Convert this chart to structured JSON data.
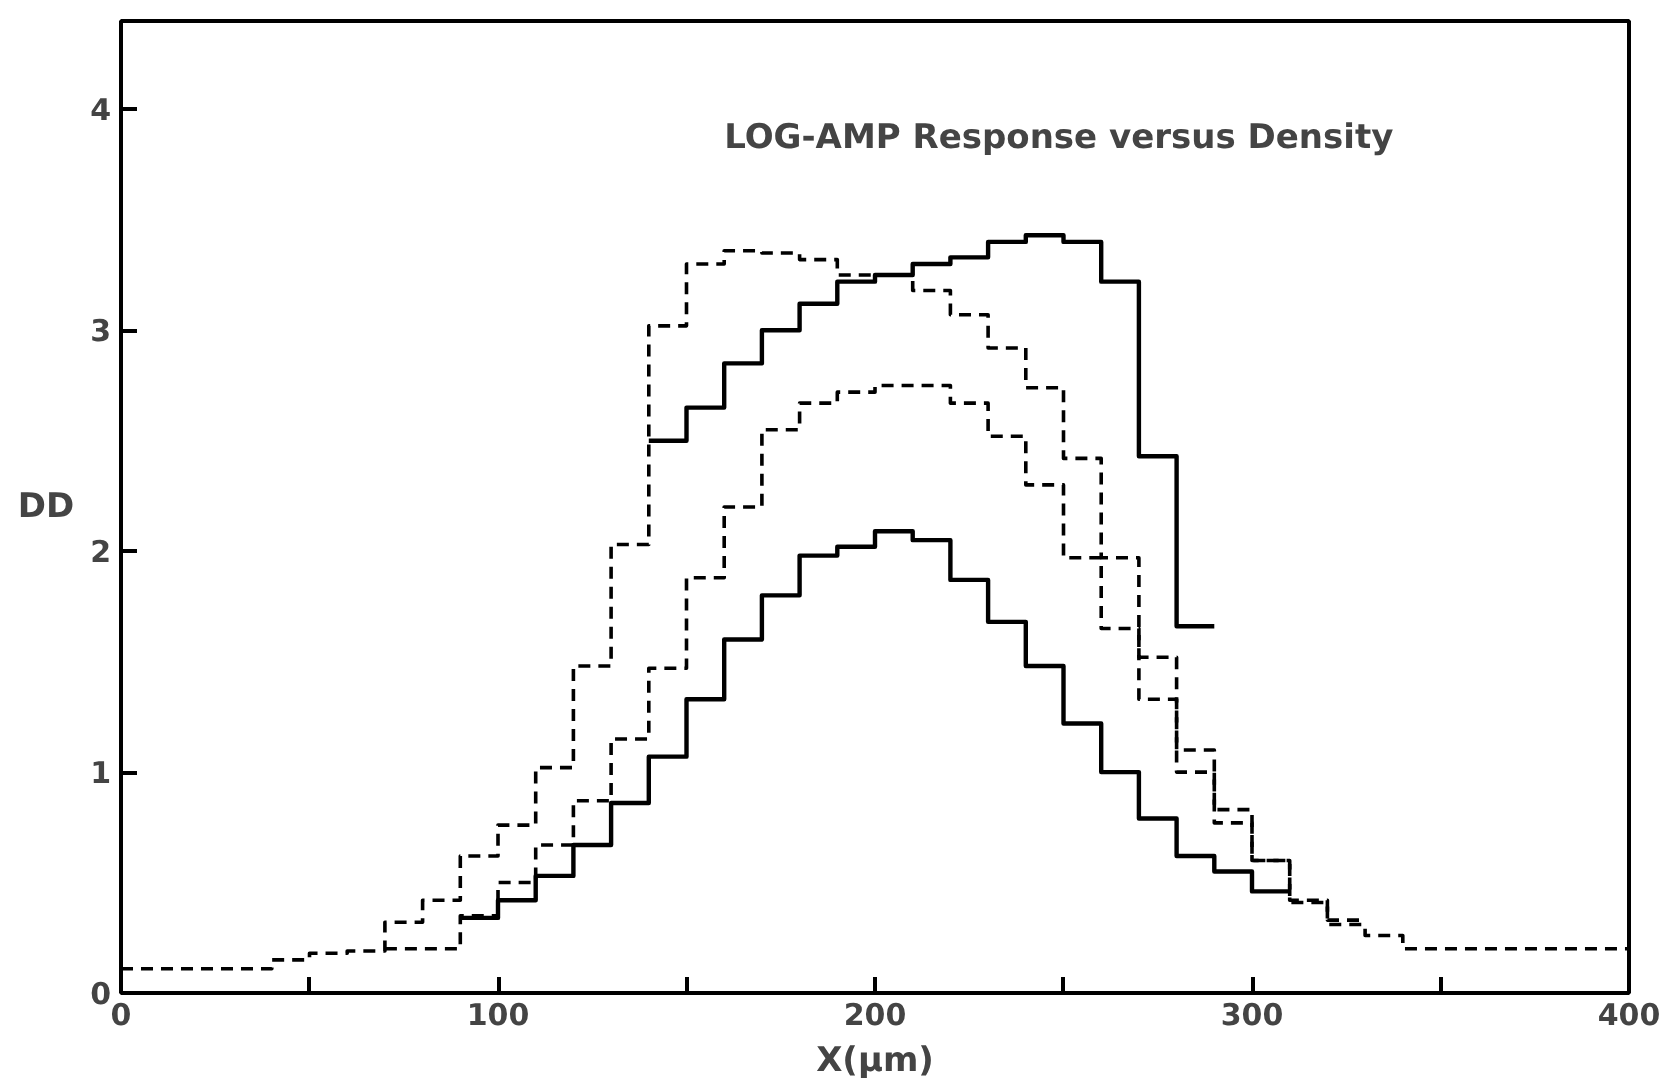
{
  "chart_data": {
    "type": "step",
    "title": "LOG-AMP Response versus Density",
    "xlabel": "X(μm)",
    "ylabel": "DD",
    "xlim": [
      0,
      400
    ],
    "ylim": [
      0,
      4.4
    ],
    "xticks": [
      0,
      {
        "value": 50,
        "label": null
      },
      100,
      {
        "value": 150,
        "label": null
      },
      200,
      {
        "value": 250,
        "label": null
      },
      300,
      {
        "value": 350,
        "label": null
      },
      400
    ],
    "yticks": [
      0,
      1,
      2,
      3,
      4
    ],
    "grid": false,
    "series": [
      {
        "color": "#000000",
        "line_style": "solid",
        "x": [
          90,
          100,
          110,
          120,
          130,
          140,
          150,
          160,
          170,
          180,
          190,
          200,
          210,
          220,
          230,
          240,
          250,
          260,
          270,
          280,
          290,
          300,
          310
        ],
        "values": [
          0.34,
          0.42,
          0.53,
          0.67,
          0.86,
          1.07,
          1.33,
          1.6,
          1.8,
          1.98,
          2.02,
          2.09,
          2.05,
          1.87,
          1.68,
          1.48,
          1.22,
          1.0,
          0.79,
          0.62,
          0.55,
          0.46,
          0.46
        ]
      },
      {
        "color": "#000000",
        "line_style": "dashed",
        "x": [
          70,
          90,
          100,
          110,
          120,
          130,
          140,
          150,
          160,
          170,
          180,
          190,
          200,
          210,
          220,
          230,
          240,
          250,
          260,
          270,
          280,
          290,
          300,
          310,
          320,
          330
        ],
        "values": [
          0.2,
          0.35,
          0.5,
          0.67,
          0.87,
          1.15,
          1.47,
          1.88,
          2.2,
          2.55,
          2.67,
          2.72,
          2.75,
          2.75,
          2.67,
          2.52,
          2.3,
          1.97,
          1.65,
          1.33,
          1.0,
          0.83,
          0.6,
          0.42,
          0.33,
          0.33
        ]
      },
      {
        "color": "#000000",
        "line_style": "solid",
        "x": [
          140,
          150,
          160,
          170,
          180,
          190,
          200,
          210,
          220,
          230,
          240,
          250,
          260,
          270,
          280,
          290
        ],
        "values": [
          2.5,
          2.65,
          2.85,
          3.0,
          3.12,
          3.22,
          3.25,
          3.3,
          3.33,
          3.4,
          3.43,
          3.4,
          3.22,
          2.43,
          1.66,
          1.66
        ]
      },
      {
        "color": "#000000",
        "line_style": "dashed",
        "x": [
          0,
          40,
          50,
          60,
          70,
          80,
          90,
          100,
          110,
          120,
          130,
          140,
          150,
          160,
          170,
          180,
          190,
          200,
          210,
          220,
          230,
          240,
          250,
          260,
          270,
          280,
          290,
          300,
          310,
          320,
          330,
          340,
          400
        ],
        "values": [
          0.11,
          0.15,
          0.18,
          0.19,
          0.32,
          0.42,
          0.62,
          0.76,
          1.02,
          1.48,
          2.03,
          3.02,
          3.3,
          3.36,
          3.35,
          3.32,
          3.25,
          3.25,
          3.18,
          3.07,
          2.92,
          2.74,
          2.42,
          1.97,
          1.52,
          1.1,
          0.77,
          0.6,
          0.41,
          0.31,
          0.26,
          0.2,
          0.2
        ]
      }
    ]
  }
}
